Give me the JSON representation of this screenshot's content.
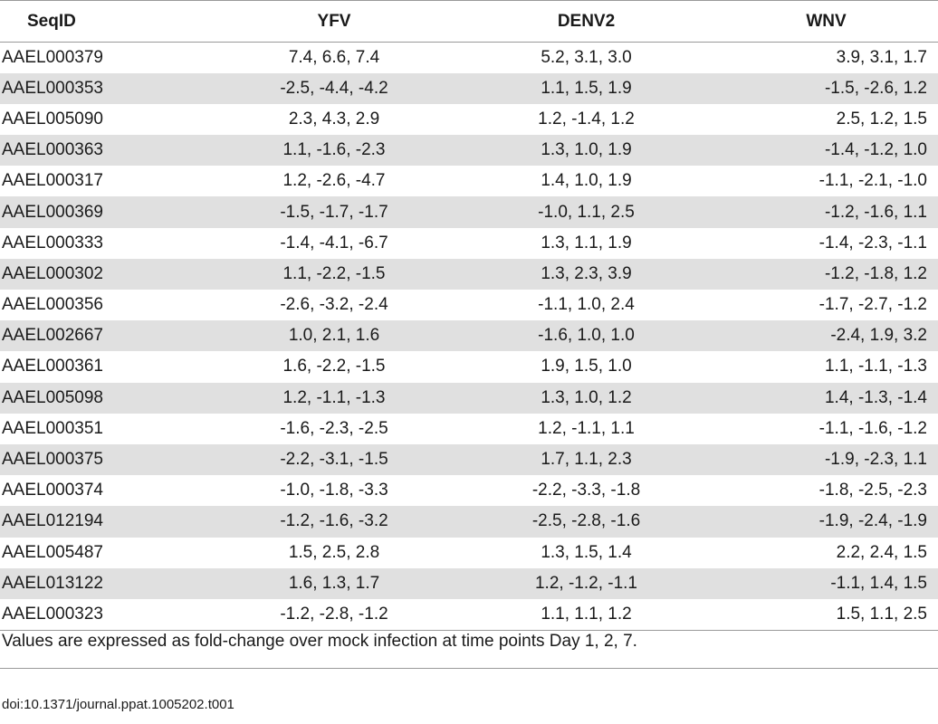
{
  "table": {
    "headers": [
      "SeqID",
      "YFV",
      "DENV2",
      "WNV"
    ],
    "rows": [
      [
        "AAEL000379",
        "7.4, 6.6, 7.4",
        "5.2, 3.1, 3.0",
        "3.9, 3.1, 1.7"
      ],
      [
        "AAEL000353",
        "-2.5, -4.4, -4.2",
        "1.1, 1.5, 1.9",
        "-1.5, -2.6, 1.2"
      ],
      [
        "AAEL005090",
        "2.3, 4.3, 2.9",
        "1.2, -1.4, 1.2",
        "2.5, 1.2, 1.5"
      ],
      [
        "AAEL000363",
        "1.1, -1.6, -2.3",
        "1.3, 1.0, 1.9",
        "-1.4, -1.2, 1.0"
      ],
      [
        "AAEL000317",
        "1.2, -2.6, -4.7",
        "1.4, 1.0, 1.9",
        "-1.1, -2.1, -1.0"
      ],
      [
        "AAEL000369",
        "-1.5, -1.7, -1.7",
        "-1.0, 1.1, 2.5",
        "-1.2, -1.6, 1.1"
      ],
      [
        "AAEL000333",
        "-1.4, -4.1, -6.7",
        "1.3, 1.1, 1.9",
        "-1.4, -2.3, -1.1"
      ],
      [
        "AAEL000302",
        "1.1, -2.2, -1.5",
        "1.3, 2.3, 3.9",
        "-1.2, -1.8, 1.2"
      ],
      [
        "AAEL000356",
        "-2.6, -3.2, -2.4",
        "-1.1, 1.0, 2.4",
        "-1.7, -2.7, -1.2"
      ],
      [
        "AAEL002667",
        "1.0, 2.1, 1.6",
        "-1.6, 1.0, 1.0",
        "-2.4, 1.9, 3.2"
      ],
      [
        "AAEL000361",
        "1.6, -2.2, -1.5",
        "1.9, 1.5, 1.0",
        "1.1, -1.1, -1.3"
      ],
      [
        "AAEL005098",
        "1.2, -1.1, -1.3",
        "1.3, 1.0, 1.2",
        "1.4, -1.3, -1.4"
      ],
      [
        "AAEL000351",
        "-1.6, -2.3, -2.5",
        "1.2, -1.1, 1.1",
        "-1.1, -1.6, -1.2"
      ],
      [
        "AAEL000375",
        "-2.2, -3.1, -1.5",
        "1.7, 1.1, 2.3",
        "-1.9, -2.3, 1.1"
      ],
      [
        "AAEL000374",
        "-1.0, -1.8, -3.3",
        "-2.2, -3.3, -1.8",
        "-1.8, -2.5, -2.3"
      ],
      [
        "AAEL012194",
        "-1.2, -1.6, -3.2",
        "-2.5, -2.8, -1.6",
        "-1.9, -2.4, -1.9"
      ],
      [
        "AAEL005487",
        "1.5, 2.5, 2.8",
        "1.3, 1.5, 1.4",
        "2.2, 2.4, 1.5"
      ],
      [
        "AAEL013122",
        "1.6, 1.3, 1.7",
        "1.2, -1.2, -1.1",
        "-1.1, 1.4, 1.5"
      ],
      [
        "AAEL000323",
        "-1.2, -2.8, -1.2",
        "1.1, 1.1, 1.2",
        "1.5, 1.1, 2.5"
      ]
    ]
  },
  "footnote": "Values are expressed as fold-change over mock infection at time points Day 1, 2, 7.",
  "doi": "doi:10.1371/journal.ppat.1005202.t001"
}
